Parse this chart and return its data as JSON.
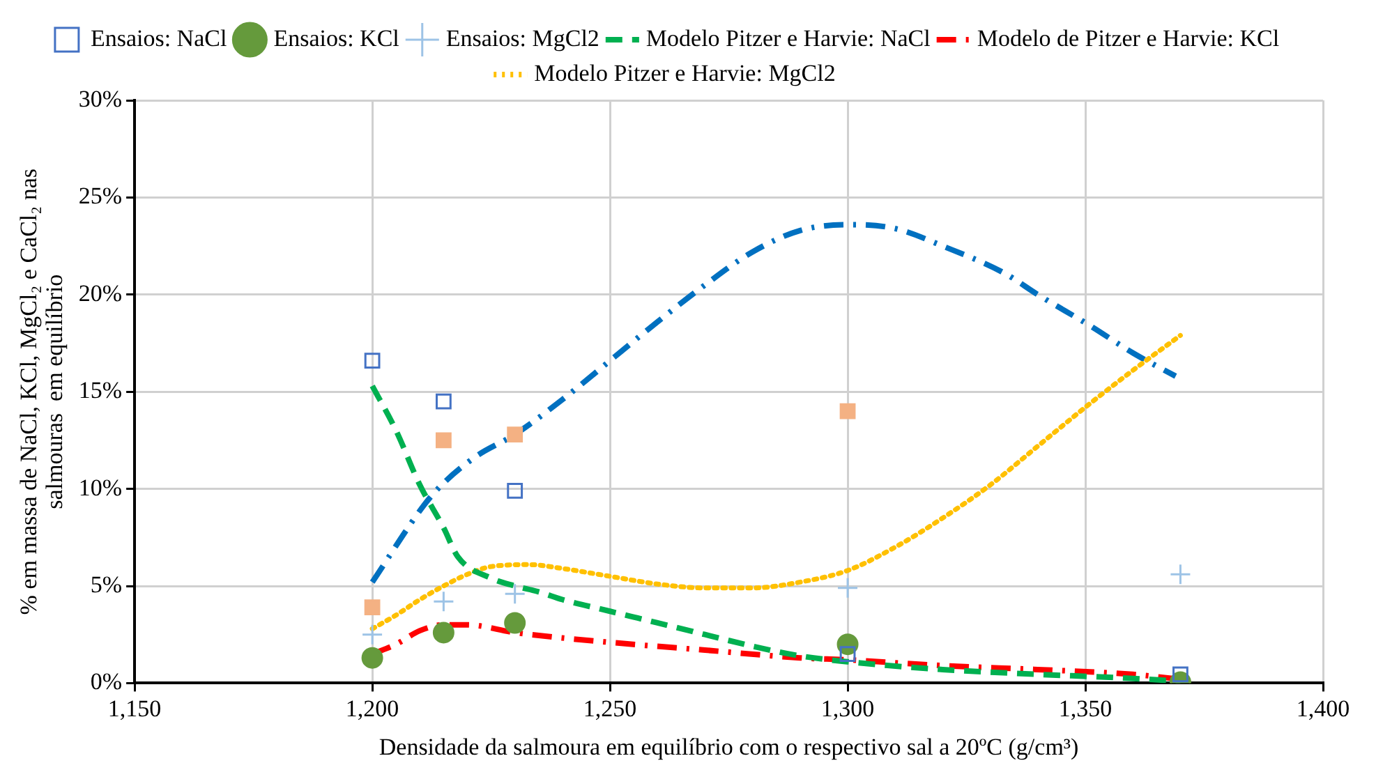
{
  "chart_data": {
    "type": "scatter",
    "xlabel": "Densidade da salmoura em equilíbrio com o respectivo sal a 20ºC (g/cm³)",
    "ylabel": "% em massa de NaCl, KCl, MgCl₂ e CaCl₂ nas\nsalmouras  em equilíbrio",
    "xlim": [
      1150,
      1400
    ],
    "xticks": [
      {
        "value": 1150,
        "label": "1,150"
      },
      {
        "value": 1200,
        "label": "1,200"
      },
      {
        "value": 1250,
        "label": "1,250"
      },
      {
        "value": 1300,
        "label": "1,300"
      },
      {
        "value": 1350,
        "label": "1,350"
      },
      {
        "value": 1400,
        "label": "1,400"
      }
    ],
    "ylim": [
      0,
      30
    ],
    "yticks": [
      {
        "value": 0,
        "label": "0%"
      },
      {
        "value": 5,
        "label": "5%"
      },
      {
        "value": 10,
        "label": "10%"
      },
      {
        "value": 15,
        "label": "15%"
      },
      {
        "value": 20,
        "label": "20%"
      },
      {
        "value": 25,
        "label": "25%"
      },
      {
        "value": 30,
        "label": "30%"
      }
    ],
    "grid": true,
    "legend": "top",
    "series": [
      {
        "name": "Ensaios: NaCl",
        "marker": "square",
        "color": "#4472c4",
        "x": [
          1200,
          1215,
          1230,
          1300,
          1370
        ],
        "values": [
          16.6,
          14.5,
          9.9,
          1.5,
          0.45
        ]
      },
      {
        "name": "Ensaios: KCl",
        "marker": "circle",
        "color": "#659a3c",
        "x": [
          1200,
          1215,
          1230,
          1300,
          1370
        ],
        "values": [
          1.3,
          2.6,
          3.1,
          2.0,
          0.05
        ]
      },
      {
        "name": "Ensaios: MgCl2",
        "marker": "cross",
        "color": "#9dc3e6",
        "x": [
          1200,
          1215,
          1230,
          1300,
          1370
        ],
        "values": [
          2.5,
          4.2,
          4.6,
          4.9,
          5.6
        ]
      },
      {
        "name": "Modelo Pitzer e Harvie: NaCl",
        "type": "line",
        "marker": "none",
        "line_style": "dashed",
        "color": "#00b050",
        "x": [
          1200,
          1205,
          1210,
          1215,
          1218,
          1225,
          1230,
          1235,
          1240,
          1250,
          1255,
          1260,
          1270,
          1280,
          1290,
          1300,
          1320,
          1340,
          1355,
          1370
        ],
        "values": [
          15.3,
          13.0,
          10.2,
          8.0,
          6.5,
          5.4,
          5.0,
          4.7,
          4.3,
          3.7,
          3.4,
          3.1,
          2.5,
          1.9,
          1.4,
          1.1,
          0.7,
          0.45,
          0.3,
          0.1
        ]
      },
      {
        "name": "Modelo de Pitzer e Harvie: KCl",
        "type": "line",
        "marker": "none",
        "line_style": "dashdot",
        "color": "#ff0000",
        "x": [
          1200,
          1205,
          1210,
          1215,
          1220,
          1230,
          1250,
          1270,
          1290,
          1300,
          1320,
          1340,
          1360,
          1370
        ],
        "values": [
          1.5,
          2.0,
          2.7,
          3.0,
          3.0,
          2.6,
          2.1,
          1.7,
          1.3,
          1.2,
          0.9,
          0.7,
          0.45,
          0.2
        ]
      },
      {
        "name": "Modelo Pitzer e Harvie: MgCl2",
        "type": "line",
        "marker": "none",
        "line_style": "dotted",
        "color": "#ffc000",
        "x": [
          1200,
          1205,
          1210,
          1215,
          1220,
          1225,
          1233,
          1240,
          1250,
          1260,
          1270,
          1280,
          1290,
          1300,
          1310,
          1320,
          1330,
          1340,
          1350,
          1360,
          1370
        ],
        "values": [
          2.8,
          3.5,
          4.3,
          5.0,
          5.6,
          6.0,
          6.1,
          5.9,
          5.5,
          5.1,
          4.9,
          4.9,
          5.2,
          5.8,
          7.0,
          8.5,
          10.2,
          12.2,
          14.2,
          16.1,
          17.9
        ]
      },
      {
        "marker": "square",
        "color": "#f4b183",
        "x": [
          1200,
          1215,
          1230,
          1300
        ],
        "values": [
          3.9,
          12.5,
          12.8,
          14.0
        ]
      },
      {
        "type": "line",
        "marker": "none",
        "line_style": "dashdot",
        "color": "#0070c0",
        "x": [
          1200,
          1211,
          1215,
          1222,
          1230,
          1240,
          1251,
          1260,
          1270,
          1280,
          1290,
          1300,
          1310,
          1320,
          1333,
          1340,
          1351,
          1360,
          1369
        ],
        "values": [
          5.2,
          9.2,
          10.3,
          11.7,
          12.8,
          14.6,
          16.8,
          18.6,
          20.5,
          22.2,
          23.3,
          23.6,
          23.4,
          22.5,
          21.1,
          20.0,
          18.4,
          17.0,
          15.8
        ]
      }
    ]
  }
}
